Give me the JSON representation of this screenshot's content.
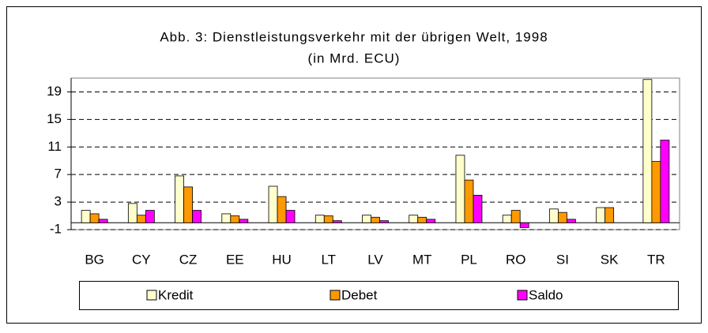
{
  "chart_data": {
    "type": "bar",
    "title": "Abb. 3:  Dienstleistungsverkehr mit der übrigen Welt, 1998",
    "subtitle": "(in Mrd. ECU)",
    "categories": [
      "BG",
      "CY",
      "CZ",
      "EE",
      "HU",
      "LT",
      "LV",
      "MT",
      "PL",
      "RO",
      "SI",
      "SK",
      "TR"
    ],
    "series": [
      {
        "name": "Kredit",
        "color": "#ffffcc",
        "values": [
          1.8,
          2.8,
          6.8,
          1.3,
          5.3,
          1.1,
          1.1,
          1.1,
          9.8,
          1.1,
          2.0,
          2.2,
          20.8
        ]
      },
      {
        "name": "Debet",
        "color": "#ff9900",
        "values": [
          1.3,
          1.1,
          5.2,
          1.0,
          3.8,
          1.0,
          0.8,
          0.8,
          6.2,
          1.8,
          1.5,
          2.2,
          8.9
        ]
      },
      {
        "name": "Saldo",
        "color": "#ff00ff",
        "values": [
          0.5,
          1.8,
          1.8,
          0.5,
          1.8,
          0.3,
          0.3,
          0.5,
          4.0,
          -0.7,
          0.5,
          0,
          12.0
        ]
      }
    ],
    "ylim": [
      -1,
      21
    ],
    "yticks": [
      -1,
      3,
      7,
      11,
      15,
      19
    ],
    "grid": true,
    "legend": "bottom"
  }
}
